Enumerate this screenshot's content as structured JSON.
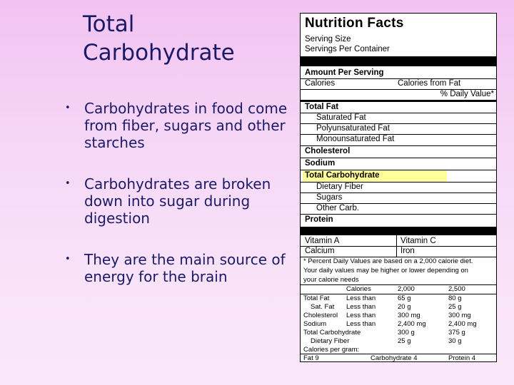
{
  "slide": {
    "title_line1": "Total",
    "title_line2": "Carbohydrate",
    "bullets": [
      "Carbohydrates in food come from fiber, sugars and other starches",
      "Carbohydrates are broken down into sugar during digestion",
      "They are the main source of energy for the brain"
    ]
  },
  "label": {
    "title": "Nutrition Facts",
    "serving_size": "Serving Size",
    "servings_per_container": "Servings Per Container",
    "amount_per_serving": "Amount Per Serving",
    "calories": "Calories",
    "calories_from_fat": "Calories from Fat",
    "daily_value_header": "% Daily Value*",
    "total_fat": "Total Fat",
    "saturated_fat": "Saturated Fat",
    "polyunsaturated_fat": "Polyunsaturated Fat",
    "monounsaturated_fat": "Monounsaturated Fat",
    "cholesterol": "Cholesterol",
    "sodium": "Sodium",
    "total_carbohydrate": "Total Carbohydrate",
    "dietary_fiber": "Dietary Fiber",
    "sugars": "Sugars",
    "other_carb": "Other Carb.",
    "protein": "Protein",
    "vitamin_a": "Vitamin A",
    "vitamin_c": "Vitamin C",
    "calcium": "Calcium",
    "iron": "Iron",
    "footnote_1": "* Percent Daily Values are based on a 2,000 calorie diet.",
    "footnote_2": "Your daily values may be higher or lower depending on",
    "footnote_3": "your calorie needs",
    "highlight_color": "#ffff99",
    "dv_table": {
      "header": [
        "",
        "Calories",
        "2,000",
        "2,500"
      ],
      "rows": [
        [
          "Total Fat",
          "Less than",
          "65 g",
          "80 g"
        ],
        [
          "Sat. Fat",
          "Less than",
          "20 g",
          "25 g"
        ],
        [
          "Cholesterol",
          "Less than",
          "300 mg",
          "300 mg"
        ],
        [
          "Sodium",
          "Less than",
          "2,400 mg",
          "2,400 mg"
        ],
        [
          "Total Carbohydrate",
          "",
          "300 g",
          "375 g"
        ],
        [
          "Dietary Fiber",
          "",
          "25 g",
          "30 g"
        ]
      ]
    },
    "calories_per_gram": "Calories per gram:",
    "fat_per_gram": "Fat 9",
    "carb_per_gram": "Carbohydrate 4",
    "protein_per_gram": "Protein 4"
  }
}
